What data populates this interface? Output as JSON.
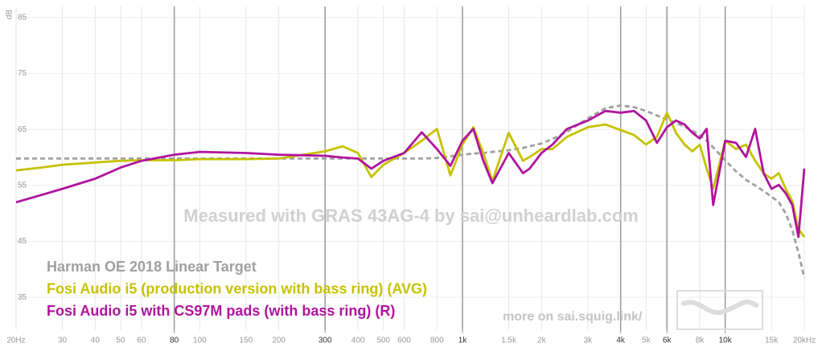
{
  "chart_data": {
    "type": "line",
    "xscale": "log",
    "ylabel": "dB",
    "annotations": [
      "Measured with GRAS 43AG-4 by sai@unheardlab.com",
      "more on sai.squig.link/"
    ],
    "x": [
      20,
      25,
      30,
      40,
      50,
      60,
      80,
      100,
      150,
      200,
      300,
      350,
      400,
      450,
      500,
      600,
      700,
      800,
      900,
      1000,
      1100,
      1200,
      1300,
      1500,
      1700,
      1800,
      2000,
      2200,
      2500,
      3000,
      3500,
      4000,
      4500,
      5000,
      5500,
      6000,
      6500,
      7000,
      7500,
      8000,
      8500,
      9000,
      10000,
      11000,
      12000,
      13000,
      14000,
      15000,
      16000,
      17000,
      18000,
      19000,
      20000
    ],
    "series": [
      {
        "name": "Harman OE 2018 Linear Target",
        "color": "#a0a0a0",
        "dashed": true,
        "values": [
          59.8,
          59.8,
          59.8,
          59.8,
          59.8,
          59.8,
          59.8,
          59.8,
          59.8,
          59.8,
          59.8,
          59.8,
          59.8,
          59.8,
          59.8,
          59.8,
          59.8,
          59.9,
          60.2,
          60.5,
          60.7,
          60.8,
          61,
          61.3,
          61.7,
          62,
          62.5,
          63.3,
          64.6,
          67,
          68.8,
          69.3,
          69,
          68.3,
          67.5,
          66.8,
          66.2,
          65.5,
          64.8,
          64,
          63,
          61.8,
          59.5,
          57.5,
          56,
          55,
          54,
          53,
          52,
          50,
          47,
          43,
          38.5
        ]
      },
      {
        "name": "Fosi Audio i5 (production version with bass ring) (AVG)",
        "color": "#c6c200",
        "dashed": false,
        "values": [
          57.7,
          58.2,
          58.7,
          59.1,
          59.4,
          59.5,
          59.5,
          59.7,
          59.7,
          59.8,
          61.1,
          62,
          60.8,
          56.5,
          58.7,
          60.8,
          63,
          65.1,
          56.8,
          62.3,
          65.4,
          60.8,
          55.8,
          64.4,
          59.4,
          60.1,
          61.5,
          61.5,
          63.7,
          65.4,
          65.9,
          64.9,
          64,
          62.3,
          63.7,
          68,
          64.4,
          62.3,
          61.1,
          62.3,
          58,
          54.4,
          63,
          61.5,
          62.3,
          59.4,
          57.2,
          56.2,
          57.2,
          54.4,
          52.2,
          47.2,
          45.8
        ]
      },
      {
        "name": "Fosi Audio i5 with CS97M pads (with bass ring) (R)",
        "color": "#b0149e",
        "dashed": false,
        "values": [
          52,
          53.3,
          54.4,
          56.2,
          58.2,
          59.4,
          60.5,
          61,
          60.8,
          60.5,
          60.3,
          60,
          59.8,
          58,
          59.4,
          60.8,
          64.5,
          61.5,
          58.5,
          63,
          65.1,
          59.4,
          55.4,
          60.8,
          57.2,
          58,
          60.8,
          62.3,
          65.1,
          66.6,
          68.3,
          68,
          68.3,
          66.6,
          62.6,
          65.4,
          66.6,
          65.9,
          64.4,
          63.4,
          65.1,
          51.5,
          63,
          62.6,
          60.1,
          65.1,
          57.2,
          54.4,
          55.1,
          53.6,
          51.5,
          45.8,
          58
        ]
      }
    ],
    "xlim": [
      20,
      20000
    ],
    "ylim": [
      30,
      87
    ],
    "xticks": [
      {
        "value": 20,
        "label": "20Hz"
      },
      30,
      40,
      50,
      60,
      80,
      100,
      150,
      200,
      300,
      400,
      500,
      600,
      800,
      {
        "value": 1000,
        "label": "1k"
      },
      {
        "value": 1500,
        "label": "1.5k"
      },
      {
        "value": 2000,
        "label": "2k"
      },
      {
        "value": 3000,
        "label": "3k"
      },
      {
        "value": 4000,
        "label": "4k"
      },
      {
        "value": 5000,
        "label": "5k"
      },
      {
        "value": 6000,
        "label": "6k"
      },
      {
        "value": 8000,
        "label": "8k"
      },
      {
        "value": 10000,
        "label": "10k"
      },
      {
        "value": 15000,
        "label": "15k"
      },
      {
        "value": 20000,
        "label": "20kHz"
      }
    ],
    "major_xticks": [
      80,
      300,
      1000,
      4000,
      6000,
      10000
    ],
    "yticks": [
      35,
      45,
      55,
      65,
      75,
      85
    ],
    "grid": true
  }
}
